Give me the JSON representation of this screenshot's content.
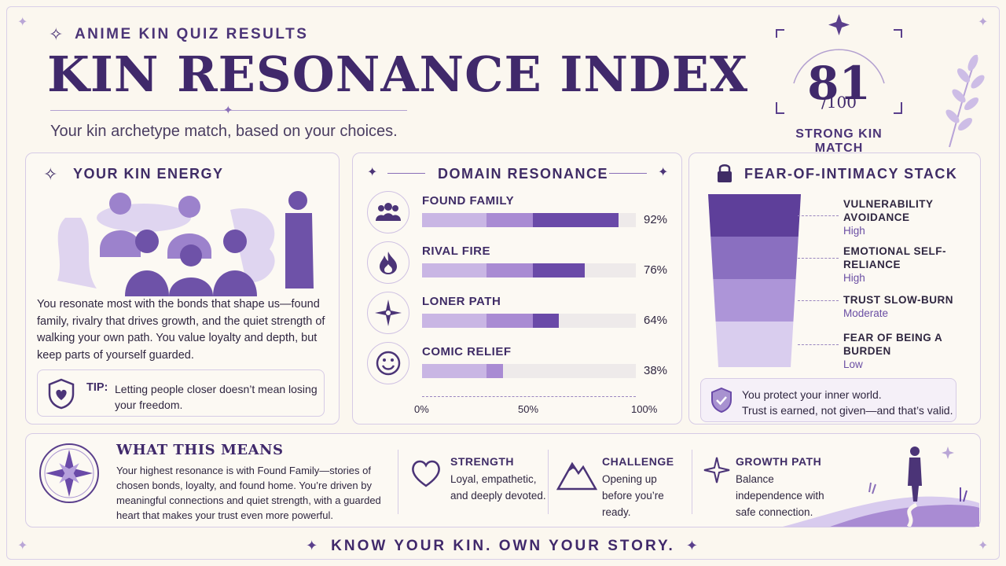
{
  "header": {
    "eyebrow": "ANIME KIN QUIZ RESULTS",
    "title": "KIN RESONANCE INDEX",
    "subtitle": "Your kin archetype match, based on your choices."
  },
  "score": {
    "value": "81",
    "out_of": "/100",
    "label": "STRONG KIN MATCH"
  },
  "kin_energy": {
    "title": "YOUR KIN ENERGY",
    "description": "You resonate most with the bonds that shape us—found family, rivalry that drives growth, and the quiet strength of walking your own path. You value loyalty and depth, but keep parts of yourself guarded.",
    "tip_label": "TIP:",
    "tip_text": "Letting people closer doesn’t mean losing your freedom."
  },
  "domain_resonance": {
    "title": "DOMAIN RESONANCE",
    "axis_labels": [
      "0%",
      "50%",
      "100%"
    ]
  },
  "chart_data": {
    "type": "bar",
    "title": "DOMAIN RESONANCE",
    "categories": [
      "FOUND FAMILY",
      "RIVAL FIRE",
      "LONER PATH",
      "COMIC RELIEF"
    ],
    "values": [
      92,
      76,
      64,
      38
    ],
    "value_labels": [
      "92%",
      "76%",
      "64%",
      "38%"
    ],
    "icons": [
      "group-icon",
      "flame-icon",
      "compass-star-icon",
      "smiley-icon"
    ],
    "xlim": [
      0,
      100
    ],
    "orientation": "horizontal"
  },
  "fear_stack": {
    "title": "FEAR-OF-INTIMACY STACK",
    "items": [
      {
        "label": "VULNERABILITY AVOIDANCE",
        "level": "High",
        "level_value": 4
      },
      {
        "label": "EMOTIONAL SELF-RELIANCE",
        "level": "High",
        "level_value": 3
      },
      {
        "label": "TRUST SLOW-BURN",
        "level": "Moderate",
        "level_value": 2
      },
      {
        "label": "FEAR OF BEING A BURDEN",
        "level": "Low",
        "level_value": 1
      }
    ],
    "note_line1": "You protect your inner world.",
    "note_line2": "Trust is earned, not given—and that’s valid."
  },
  "meaning": {
    "title": "WHAT THIS MEANS",
    "text": "Your highest resonance is with Found Family—stories of chosen bonds, loyalty, and found home. You’re driven by meaningful connections and quiet strength, with a guarded heart that makes your trust even more powerful.",
    "columns": [
      {
        "title": "STRENGTH",
        "text": "Loyal, empathetic, and deeply devoted.",
        "icon": "heart-icon"
      },
      {
        "title": "CHALLENGE",
        "text": "Opening up before you’re ready.",
        "icon": "mountain-icon"
      },
      {
        "title": "GROWTH PATH",
        "text": "Balance independence with safe connection.",
        "icon": "sparkle-icon"
      }
    ]
  },
  "footer": {
    "text": "KNOW YOUR KIN. OWN YOUR STORY."
  },
  "colors": {
    "bar_light": "#c9b6e4",
    "bar_mid": "#a98bd3",
    "bar_dark": "#6a4aa8",
    "stack": [
      "#5e3f9a",
      "#8a6fc0",
      "#ad95d8",
      "#d9cdee"
    ]
  }
}
